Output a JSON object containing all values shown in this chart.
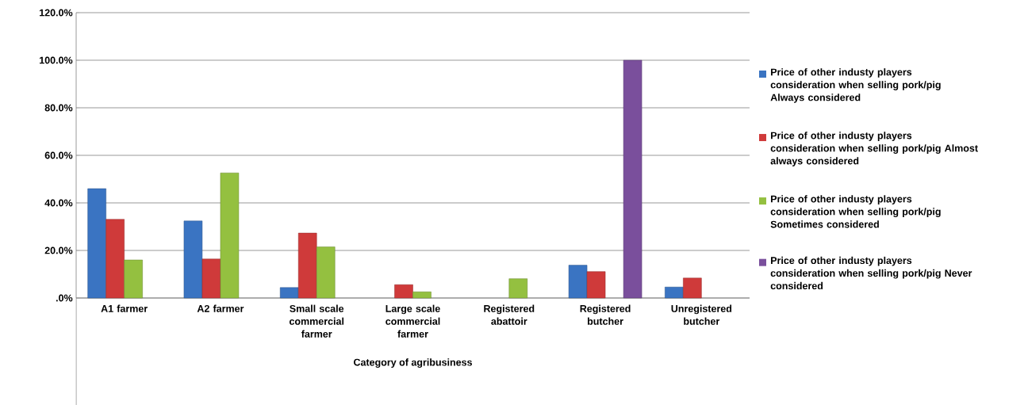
{
  "chart_data": {
    "type": "bar",
    "xlabel": "Category of agribusiness",
    "categories": [
      "A1 farmer",
      "A2 farmer",
      "Small scale commercial farmer",
      "Large scale commercial farmer",
      "Registered abattoir",
      "Registered butcher",
      "Unregistered butcher"
    ],
    "series": [
      {
        "name": "Price of other industy players consideration when selling pork/pig Always considered",
        "color": "#3a74c2",
        "values": [
          46.0,
          32.4,
          4.4,
          null,
          null,
          13.8,
          4.6
        ]
      },
      {
        "name": "Price of other industy players consideration when selling pork/pig Almost always considered",
        "color": "#cf3a3a",
        "values": [
          33.1,
          16.4,
          27.3,
          5.6,
          null,
          11.1,
          8.4
        ]
      },
      {
        "name": "Price of other industy players consideration when selling pork/pig Sometimes considered",
        "color": "#94c040",
        "values": [
          16.0,
          52.6,
          21.5,
          2.6,
          8.1,
          null,
          null
        ]
      },
      {
        "name": "Price of other industy players consideration when selling pork/pig Never considered",
        "color": "#7a4f9c",
        "values": [
          null,
          null,
          null,
          null,
          null,
          100.0,
          null
        ]
      }
    ],
    "ylim": [
      0,
      120
    ],
    "yticks": [
      {
        "value": 0,
        "label": ".0%"
      },
      {
        "value": 20,
        "label": "20.0%"
      },
      {
        "value": 40,
        "label": "40.0%"
      },
      {
        "value": 60,
        "label": "60.0%"
      },
      {
        "value": 80,
        "label": "80.0%"
      },
      {
        "value": 100,
        "label": "100.0%"
      },
      {
        "value": 120,
        "label": "120.0%"
      }
    ],
    "grid": "y",
    "legend": "right"
  }
}
